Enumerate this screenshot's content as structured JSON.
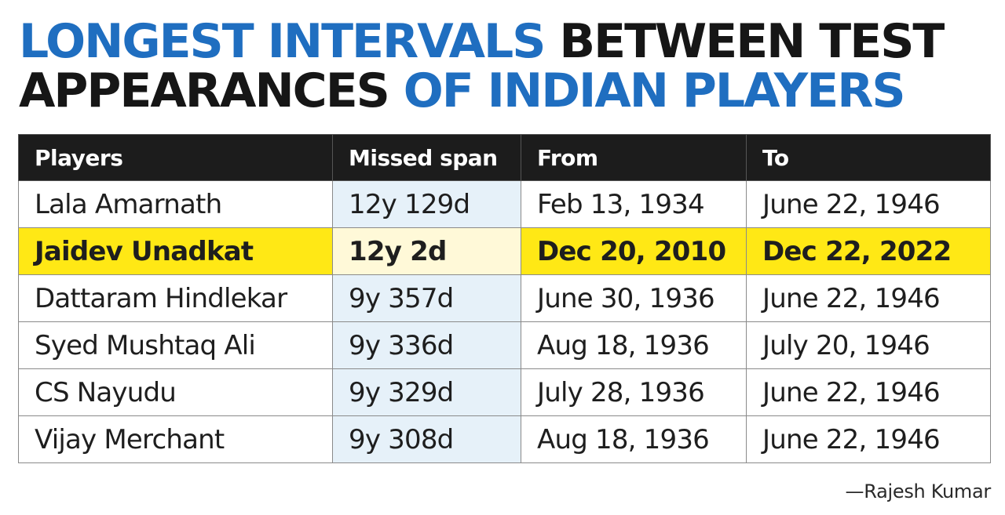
{
  "title": {
    "line1_part1": "LONGEST INTERVALS",
    "line1_part2": " BETWEEN TEST",
    "line2_part1": "APPEARANCES",
    "line2_part2": " OF INDIAN PLAYERS"
  },
  "colors": {
    "title_blue": "#1f6ec0",
    "header_bg": "#1c1c1c",
    "highlight_row": "#ffe815",
    "missed_span_column": "#e6f1f9"
  },
  "chart_data": {
    "type": "table",
    "columns": [
      "Players",
      "Missed span",
      "From",
      "To"
    ],
    "rows": [
      [
        "Lala Amarnath",
        "12y 129d",
        "Feb 13, 1934",
        "June 22, 1946"
      ],
      [
        "Jaidev Unadkat",
        "12y 2d",
        "Dec 20, 2010",
        "Dec 22, 2022"
      ],
      [
        "Dattaram Hindlekar",
        "9y 357d",
        "June 30, 1936",
        "June 22, 1946"
      ],
      [
        "Syed Mushtaq Ali",
        "9y 336d",
        "Aug 18, 1936",
        "July 20, 1946"
      ],
      [
        "CS Nayudu",
        "9y 329d",
        "July 28, 1936",
        "June 22, 1946"
      ],
      [
        "Vijay Merchant",
        "9y 308d",
        "Aug 18, 1936",
        "June 22, 1946"
      ]
    ],
    "highlighted_row": "Jaidev Unadkat"
  },
  "credit": "—Rajesh Kumar"
}
